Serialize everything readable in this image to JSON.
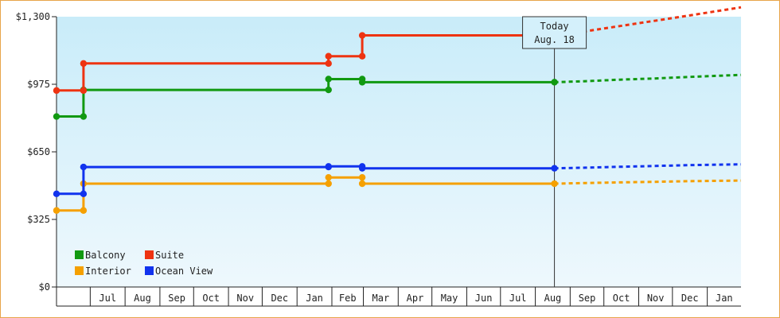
{
  "chart_data": {
    "type": "line",
    "title": "",
    "xlabel": "",
    "ylabel": "",
    "ylim": [
      0,
      1300
    ],
    "yticks": [
      {
        "value": 0,
        "label": "$0"
      },
      {
        "value": 325,
        "label": "$325"
      },
      {
        "value": 650,
        "label": "$650"
      },
      {
        "value": 975,
        "label": "$975"
      },
      {
        "value": 1300,
        "label": "$1,300"
      }
    ],
    "x_axis": {
      "start": "2024-06-01",
      "end": "2026-01-31",
      "month_labels": [
        {
          "date": "2024-07-01",
          "label": "Jul"
        },
        {
          "date": "2024-08-01",
          "label": "Aug"
        },
        {
          "date": "2024-09-01",
          "label": "Sep"
        },
        {
          "date": "2024-10-01",
          "label": "Oct"
        },
        {
          "date": "2024-11-01",
          "label": "Nov"
        },
        {
          "date": "2024-12-01",
          "label": "Dec"
        },
        {
          "date": "2025-01-01",
          "label": "Jan"
        },
        {
          "date": "2025-02-01",
          "label": "Feb"
        },
        {
          "date": "2025-03-01",
          "label": "Mar"
        },
        {
          "date": "2025-04-01",
          "label": "Apr"
        },
        {
          "date": "2025-05-01",
          "label": "May"
        },
        {
          "date": "2025-06-01",
          "label": "Jun"
        },
        {
          "date": "2025-07-01",
          "label": "Jul"
        },
        {
          "date": "2025-08-01",
          "label": "Aug"
        },
        {
          "date": "2025-09-01",
          "label": "Sep"
        },
        {
          "date": "2025-10-01",
          "label": "Oct"
        },
        {
          "date": "2025-11-01",
          "label": "Nov"
        },
        {
          "date": "2025-12-01",
          "label": "Dec"
        },
        {
          "date": "2026-01-01",
          "label": "Jan"
        }
      ]
    },
    "grid": false,
    "background": {
      "top": "#c9ecf9",
      "bottom": "#eef8fd"
    },
    "today": {
      "date": "2025-08-18",
      "label_line1": "Today",
      "label_line2": "Aug. 18"
    },
    "legend": {
      "placement": "bottom-left"
    },
    "series": [
      {
        "name": "Balcony",
        "color": "#119911",
        "points": [
          {
            "date": "2024-06-01",
            "value": 820
          },
          {
            "date": "2024-06-25",
            "value": 820
          },
          {
            "date": "2024-06-25",
            "value": 948
          },
          {
            "date": "2025-01-29",
            "value": 948
          },
          {
            "date": "2025-01-29",
            "value": 1000
          },
          {
            "date": "2025-02-28",
            "value": 1000
          },
          {
            "date": "2025-02-28",
            "value": 985
          },
          {
            "date": "2025-08-18",
            "value": 985
          }
        ],
        "forecast": [
          {
            "date": "2025-08-18",
            "value": 985
          },
          {
            "date": "2025-09-15",
            "value": 990
          },
          {
            "date": "2025-10-15",
            "value": 997
          },
          {
            "date": "2025-11-15",
            "value": 1003
          },
          {
            "date": "2025-12-15",
            "value": 1010
          },
          {
            "date": "2026-01-31",
            "value": 1020
          }
        ]
      },
      {
        "name": "Suite",
        "color": "#ee3311",
        "points": [
          {
            "date": "2024-06-01",
            "value": 945
          },
          {
            "date": "2024-06-25",
            "value": 945
          },
          {
            "date": "2024-06-25",
            "value": 1075
          },
          {
            "date": "2025-01-29",
            "value": 1075
          },
          {
            "date": "2025-01-29",
            "value": 1110
          },
          {
            "date": "2025-02-28",
            "value": 1110
          },
          {
            "date": "2025-02-28",
            "value": 1210
          },
          {
            "date": "2025-08-18",
            "value": 1210
          }
        ],
        "forecast": [
          {
            "date": "2025-08-18",
            "value": 1210
          },
          {
            "date": "2025-09-15",
            "value": 1230
          },
          {
            "date": "2025-10-15",
            "value": 1255
          },
          {
            "date": "2025-11-15",
            "value": 1280
          },
          {
            "date": "2025-12-15",
            "value": 1305
          },
          {
            "date": "2026-01-31",
            "value": 1345
          }
        ]
      },
      {
        "name": "Interior",
        "color": "#f5a000",
        "points": [
          {
            "date": "2024-06-01",
            "value": 368
          },
          {
            "date": "2024-06-25",
            "value": 368
          },
          {
            "date": "2024-06-25",
            "value": 497
          },
          {
            "date": "2025-01-29",
            "value": 497
          },
          {
            "date": "2025-01-29",
            "value": 527
          },
          {
            "date": "2025-02-28",
            "value": 527
          },
          {
            "date": "2025-02-28",
            "value": 497
          },
          {
            "date": "2025-08-18",
            "value": 497
          }
        ],
        "forecast": [
          {
            "date": "2025-08-18",
            "value": 497
          },
          {
            "date": "2025-09-15",
            "value": 500
          },
          {
            "date": "2025-10-15",
            "value": 503
          },
          {
            "date": "2025-11-15",
            "value": 506
          },
          {
            "date": "2025-12-15",
            "value": 509
          },
          {
            "date": "2026-01-31",
            "value": 512
          }
        ]
      },
      {
        "name": "Ocean View",
        "color": "#1133ee",
        "points": [
          {
            "date": "2024-06-01",
            "value": 448
          },
          {
            "date": "2024-06-25",
            "value": 448
          },
          {
            "date": "2024-06-25",
            "value": 577
          },
          {
            "date": "2025-01-29",
            "value": 577
          },
          {
            "date": "2025-01-29",
            "value": 580
          },
          {
            "date": "2025-02-28",
            "value": 580
          },
          {
            "date": "2025-02-28",
            "value": 571
          },
          {
            "date": "2025-08-18",
            "value": 571
          }
        ],
        "forecast": [
          {
            "date": "2025-08-18",
            "value": 571
          },
          {
            "date": "2025-09-15",
            "value": 574
          },
          {
            "date": "2025-10-15",
            "value": 578
          },
          {
            "date": "2025-11-15",
            "value": 582
          },
          {
            "date": "2025-12-15",
            "value": 586
          },
          {
            "date": "2026-01-31",
            "value": 590
          }
        ]
      }
    ]
  }
}
